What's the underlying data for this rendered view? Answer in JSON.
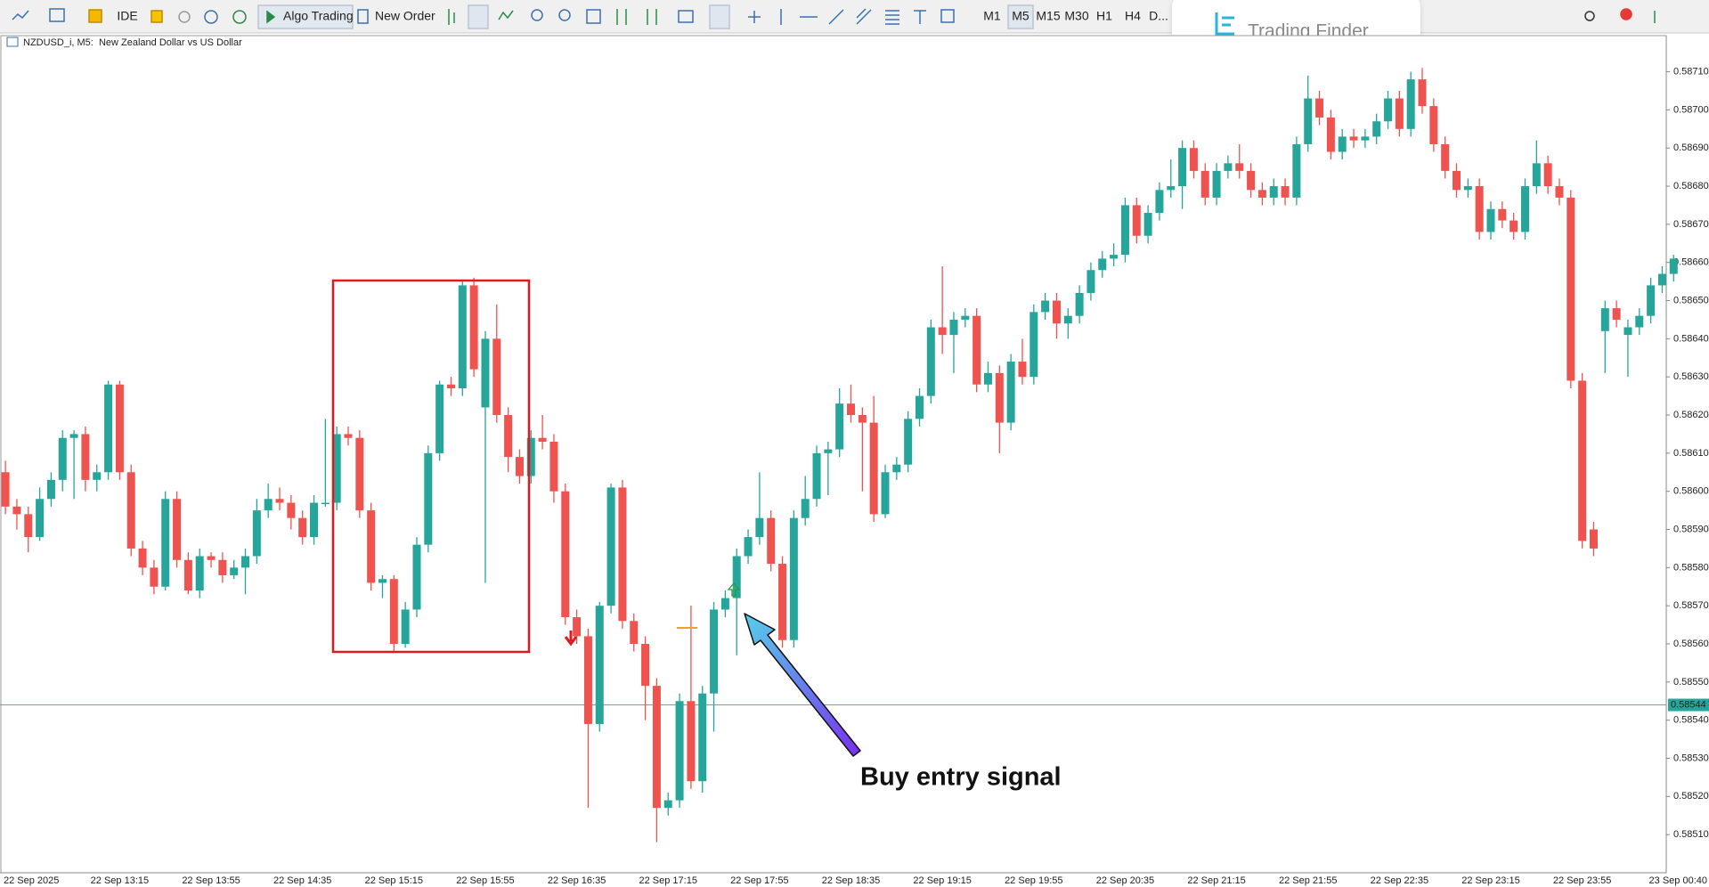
{
  "toolbar": {
    "ide": "IDE",
    "algo": "Algo Trading",
    "new_order": "New Order",
    "timeframes": [
      "M1",
      "M5",
      "M15",
      "M30",
      "H1",
      "H4",
      "D..."
    ]
  },
  "logo": "Trading Finder",
  "chart_data": {
    "type": "candlestick",
    "title": "NZDUSD_i, M5:  New Zealand Dollar vs US Dollar",
    "annotation": "Buy entry signal",
    "up_color": "#26a69a",
    "down_color": "#ef5350",
    "current_price": 0.58544,
    "ylim": [
      0.585,
      0.58719
    ],
    "yticks": [
      {
        "value": 0.5851,
        "label": "0.58510"
      },
      {
        "value": 0.5852,
        "label": "0.58520"
      },
      {
        "value": 0.5853,
        "label": "0.58530"
      },
      {
        "value": 0.5854,
        "label": "0.58540"
      },
      {
        "value": 0.5855,
        "label": "0.58550"
      },
      {
        "value": 0.5856,
        "label": "0.58560"
      },
      {
        "value": 0.5857,
        "label": "0.58570"
      },
      {
        "value": 0.5858,
        "label": "0.58580"
      },
      {
        "value": 0.5859,
        "label": "0.58590"
      },
      {
        "value": 0.586,
        "label": "0.58600"
      },
      {
        "value": 0.5861,
        "label": "0.58610"
      },
      {
        "value": 0.5862,
        "label": "0.58620"
      },
      {
        "value": 0.5863,
        "label": "0.58630"
      },
      {
        "value": 0.5864,
        "label": "0.58640"
      },
      {
        "value": 0.5865,
        "label": "0.58650"
      },
      {
        "value": 0.5866,
        "label": "0.58660"
      },
      {
        "value": 0.5867,
        "label": "0.58670"
      },
      {
        "value": 0.5868,
        "label": "0.58680"
      },
      {
        "value": 0.5869,
        "label": "0.58690"
      },
      {
        "value": 0.587,
        "label": "0.58700"
      },
      {
        "value": 0.5871,
        "label": "0.58710"
      }
    ],
    "categories": [
      "22 Sep 2025",
      null,
      null,
      null,
      null,
      null,
      null,
      null,
      null,
      null,
      "22 Sep 13:15",
      null,
      null,
      null,
      null,
      null,
      null,
      null,
      "22 Sep 13:55",
      null,
      null,
      null,
      null,
      null,
      null,
      null,
      "22 Sep 14:35",
      null,
      null,
      null,
      null,
      null,
      null,
      null,
      "22 Sep 15:15",
      null,
      null,
      null,
      null,
      null,
      null,
      null,
      "22 Sep 15:55",
      null,
      null,
      null,
      null,
      null,
      null,
      null,
      "22 Sep 16:35",
      null,
      null,
      null,
      null,
      null,
      null,
      null,
      "22 Sep 17:15",
      null,
      null,
      null,
      null,
      null,
      null,
      null,
      "22 Sep 17:55",
      null,
      null,
      null,
      null,
      null,
      null,
      null,
      "22 Sep 18:35",
      null,
      null,
      null,
      null,
      null,
      null,
      null,
      "22 Sep 19:15",
      null,
      null,
      null,
      null,
      null,
      null,
      null,
      "22 Sep 19:55",
      null,
      null,
      null,
      null,
      null,
      null,
      null,
      "22 Sep 20:35",
      null,
      null,
      null,
      null,
      null,
      null,
      null,
      "22 Sep 21:15",
      null,
      null,
      null,
      null,
      null,
      null,
      null,
      "22 Sep 21:55",
      null,
      null,
      null,
      null,
      null,
      null,
      null,
      "22 Sep 22:35",
      null,
      null,
      null,
      null,
      null,
      null,
      null,
      "22 Sep 23:15",
      null,
      null,
      null,
      null,
      null,
      null,
      null,
      "22 Sep 23:55",
      null,
      null,
      null,
      null,
      null,
      null,
      null,
      null
    ],
    "x_end_label": "23 Sep 00:40",
    "open": [
      0.58605,
      0.58596,
      0.58594,
      0.58588,
      0.58598,
      0.58603,
      0.58614,
      0.58615,
      0.58603,
      0.58605,
      0.58628,
      0.58605,
      0.58585,
      0.5858,
      0.58575,
      0.58598,
      0.58582,
      0.58574,
      0.58583,
      0.58582,
      0.58578,
      0.5858,
      0.58583,
      0.58595,
      0.58598,
      0.58597,
      0.58593,
      0.58588,
      0.58597,
      0.58597,
      0.58615,
      0.58614,
      0.58595,
      0.58576,
      0.58577,
      0.5856,
      0.58569,
      0.58586,
      0.5861,
      0.58628,
      0.58627,
      0.58654,
      0.58622,
      0.5864,
      0.5862,
      0.58609,
      0.58604,
      0.58614,
      0.58613,
      0.586,
      0.58567,
      0.58562,
      0.58539,
      0.5857,
      0.58601,
      0.58566,
      0.5856,
      0.58549,
      0.58517,
      0.58519,
      0.58545,
      0.58524,
      0.58547,
      0.58569,
      0.58572,
      0.58583,
      0.58588,
      0.58593,
      0.58581,
      0.58561,
      0.58593,
      0.58598,
      0.5861,
      0.58611,
      0.58623,
      0.5862,
      0.58618,
      0.58594,
      0.58605,
      0.58607,
      0.58619,
      0.58625,
      0.58643,
      0.58641,
      0.58645,
      0.58646,
      0.58628,
      0.58631,
      0.58618,
      0.58634,
      0.5863,
      0.58647,
      0.5865,
      0.58644,
      0.58646,
      0.58652,
      0.58658,
      0.58661,
      0.58662,
      0.58675,
      0.58667,
      0.58673,
      0.58679,
      0.5868,
      0.5869,
      0.58684,
      0.58677,
      0.58684,
      0.58686,
      0.58684,
      0.58679,
      0.58677,
      0.5868,
      0.58677,
      0.58691,
      0.58703,
      0.58698,
      0.58689,
      0.58693,
      0.58692,
      0.58693,
      0.58697,
      0.58703,
      0.58695,
      0.58708,
      0.58701,
      0.58691,
      0.58684,
      0.58679,
      0.5868,
      0.58668,
      0.58674,
      0.58671,
      0.58668,
      0.5868,
      0.58686,
      0.5868,
      0.58677,
      0.58629,
      0.5859,
      0.58642,
      0.58648,
      0.58641,
      0.58643,
      0.58646,
      0.58654,
      0.58657
    ],
    "high": [
      0.58608,
      0.58598,
      0.58596,
      0.58601,
      0.58605,
      0.58616,
      0.58616,
      0.58617,
      0.58607,
      0.58629,
      0.58629,
      0.58607,
      0.58587,
      0.58582,
      0.586,
      0.586,
      0.58584,
      0.58585,
      0.58584,
      0.58584,
      0.58582,
      0.58585,
      0.58598,
      0.58602,
      0.58601,
      0.58599,
      0.58595,
      0.58599,
      0.58619,
      0.58617,
      0.58617,
      0.58616,
      0.58597,
      0.58578,
      0.58578,
      0.58571,
      0.58588,
      0.58612,
      0.58629,
      0.5863,
      0.58655,
      0.58656,
      0.58642,
      0.58649,
      0.58622,
      0.58611,
      0.58616,
      0.5862,
      0.58615,
      0.58602,
      0.58569,
      0.58564,
      0.58571,
      0.58602,
      0.58603,
      0.58568,
      0.58562,
      0.58551,
      0.58521,
      0.58547,
      0.5857,
      0.58549,
      0.58571,
      0.58574,
      0.58585,
      0.5859,
      0.58605,
      0.58595,
      0.58583,
      0.58595,
      0.58604,
      0.58612,
      0.58613,
      0.58627,
      0.58628,
      0.58622,
      0.58625,
      0.58607,
      0.58609,
      0.58621,
      0.58627,
      0.58645,
      0.58659,
      0.58647,
      0.58648,
      0.58648,
      0.58634,
      0.58633,
      0.58636,
      0.5864,
      0.58649,
      0.58652,
      0.58652,
      0.58648,
      0.58654,
      0.5866,
      0.58663,
      0.58665,
      0.58677,
      0.58677,
      0.58675,
      0.58681,
      0.58687,
      0.58692,
      0.58692,
      0.58686,
      0.58686,
      0.58688,
      0.58691,
      0.58686,
      0.58681,
      0.58682,
      0.58682,
      0.58693,
      0.58709,
      0.58705,
      0.587,
      0.58695,
      0.58695,
      0.58695,
      0.58699,
      0.58705,
      0.58705,
      0.5871,
      0.58711,
      0.58703,
      0.58693,
      0.58686,
      0.58682,
      0.58682,
      0.58676,
      0.58676,
      0.58673,
      0.58682,
      0.58692,
      0.58688,
      0.58682,
      0.58679,
      0.58631,
      0.58592,
      0.5865,
      0.5865,
      0.58645,
      0.58648,
      0.58656,
      0.58659,
      0.58662
    ],
    "low": [
      0.58594,
      0.5859,
      0.58584,
      0.58587,
      0.58596,
      0.586,
      0.58598,
      0.586,
      0.586,
      0.58603,
      0.58603,
      0.58583,
      0.58578,
      0.58573,
      0.58574,
      0.5858,
      0.58573,
      0.58572,
      0.5858,
      0.58576,
      0.58577,
      0.58573,
      0.58581,
      0.58593,
      0.58595,
      0.5859,
      0.58586,
      0.58586,
      0.58596,
      0.58595,
      0.58612,
      0.58593,
      0.58574,
      0.58572,
      0.58558,
      0.58559,
      0.58567,
      0.58584,
      0.58608,
      0.58625,
      0.58625,
      0.5863,
      0.58576,
      0.58618,
      0.58605,
      0.58602,
      0.58602,
      0.58611,
      0.58597,
      0.58565,
      0.5856,
      0.58517,
      0.58537,
      0.58568,
      0.58564,
      0.58558,
      0.5854,
      0.58508,
      0.58515,
      0.58517,
      0.58522,
      0.58521,
      0.58537,
      0.58567,
      0.58557,
      0.58581,
      0.58586,
      0.58579,
      0.58559,
      0.58559,
      0.58591,
      0.58596,
      0.58599,
      0.58609,
      0.58618,
      0.586,
      0.58592,
      0.58593,
      0.58603,
      0.58605,
      0.58617,
      0.58623,
      0.58636,
      0.58631,
      0.58643,
      0.58626,
      0.58626,
      0.5861,
      0.58616,
      0.58628,
      0.58628,
      0.58645,
      0.5864,
      0.5864,
      0.58644,
      0.5865,
      0.58656,
      0.58659,
      0.5866,
      0.58665,
      0.58665,
      0.58671,
      0.58677,
      0.58674,
      0.58682,
      0.58675,
      0.58675,
      0.58682,
      0.58682,
      0.58677,
      0.58675,
      0.58675,
      0.58675,
      0.58675,
      0.58689,
      0.58696,
      0.58687,
      0.58687,
      0.5869,
      0.5869,
      0.58691,
      0.58695,
      0.58693,
      0.58693,
      0.58699,
      0.58689,
      0.58682,
      0.58677,
      0.58677,
      0.58666,
      0.58666,
      0.58669,
      0.58666,
      0.58666,
      0.58678,
      0.58678,
      0.58675,
      0.58627,
      0.58585,
      0.58583,
      0.58631,
      0.58643,
      0.5863,
      0.58641,
      0.58644,
      0.58652,
      0.58655
    ],
    "close": [
      0.58596,
      0.58594,
      0.58588,
      0.58598,
      0.58603,
      0.58614,
      0.58615,
      0.58603,
      0.58605,
      0.58628,
      0.58605,
      0.58585,
      0.5858,
      0.58575,
      0.58598,
      0.58582,
      0.58574,
      0.58583,
      0.58582,
      0.58578,
      0.5858,
      0.58583,
      0.58595,
      0.58598,
      0.58597,
      0.58593,
      0.58588,
      0.58597,
      0.58597,
      0.58615,
      0.58614,
      0.58595,
      0.58576,
      0.58577,
      0.5856,
      0.58569,
      0.58586,
      0.5861,
      0.58628,
      0.58627,
      0.58654,
      0.58632,
      0.5864,
      0.5862,
      0.58609,
      0.58604,
      0.58614,
      0.58613,
      0.586,
      0.58567,
      0.58562,
      0.58539,
      0.5857,
      0.58601,
      0.58566,
      0.5856,
      0.58549,
      0.58517,
      0.58519,
      0.58545,
      0.58524,
      0.58547,
      0.58569,
      0.58572,
      0.58583,
      0.58588,
      0.58593,
      0.58581,
      0.58561,
      0.58593,
      0.58598,
      0.5861,
      0.58611,
      0.58623,
      0.5862,
      0.58618,
      0.58594,
      0.58605,
      0.58607,
      0.58619,
      0.58625,
      0.58643,
      0.58641,
      0.58645,
      0.58646,
      0.58628,
      0.58631,
      0.58618,
      0.58634,
      0.5863,
      0.58647,
      0.5865,
      0.58644,
      0.58646,
      0.58652,
      0.58658,
      0.58661,
      0.58662,
      0.58675,
      0.58667,
      0.58673,
      0.58679,
      0.5868,
      0.5869,
      0.58684,
      0.58677,
      0.58684,
      0.58686,
      0.58684,
      0.58679,
      0.58677,
      0.5868,
      0.58677,
      0.58691,
      0.58703,
      0.58698,
      0.58689,
      0.58693,
      0.58692,
      0.58693,
      0.58697,
      0.58703,
      0.58695,
      0.58708,
      0.58701,
      0.58691,
      0.58684,
      0.58679,
      0.5868,
      0.58668,
      0.58674,
      0.58671,
      0.58668,
      0.5868,
      0.58686,
      0.5868,
      0.58677,
      0.58629,
      0.58587,
      0.58585,
      0.58648,
      0.58645,
      0.58643,
      0.58646,
      0.58654,
      0.58657,
      0.58661
    ]
  }
}
